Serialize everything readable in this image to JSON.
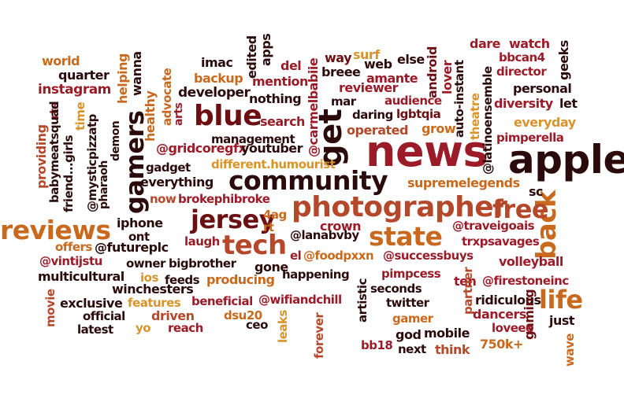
{
  "words": {
    "apple": "apple",
    "news": "news",
    "photographer": "photographer",
    "community": "community",
    "jersey": "jersey",
    "tech": "tech",
    "reviews": "reviews",
    "blue": "blue",
    "gamers": "gamers",
    "get": "get",
    "back": "back",
    "state": "state",
    "free": "free",
    "life": "life",
    "world": "world",
    "quarter": "quarter",
    "instagram": "instagram",
    "helping": "helping",
    "wanna": "wanna",
    "healthy": "healthy",
    "time": "time",
    "rts": "rts",
    "providing": "providing",
    "babymeatsquad": "babymeatsquad",
    "friendgirls": "friend...girls",
    "mysticpizzatp": "@mysticpizzatp",
    "pharaoh": "pharaoh",
    "demon": "demon",
    "advocate": "advocate",
    "arts": "arts",
    "imac": "imac",
    "backup": "backup",
    "developer": "developer",
    "management": "management",
    "edited": "edited",
    "apps": "apps",
    "del": "del",
    "mention": "mention",
    "nothing": "nothing",
    "search": "search",
    "carmelbabiie": "@carmelbabiie",
    "way": "way",
    "surf": "surf",
    "web": "web",
    "else": "else",
    "breee": "breee",
    "amante": "amante",
    "reviewer": "reviewer",
    "mar": "mar",
    "daring": "daring",
    "lgbtqia": "lgbtqia",
    "audience": "audience",
    "android": "android",
    "lover": "lover",
    "autoinstant": "auto-instant",
    "operated": "operated",
    "grow": "grow",
    "dare": "dare",
    "watch": "watch",
    "bbcan4": "bbcan4",
    "director": "director",
    "geeks": "geeks",
    "personal": "personal",
    "diversity": "diversity",
    "let": "let",
    "theatre": "theatre",
    "latinoensemble": "@latinoensemble",
    "everyday": "everyday",
    "pimperella": "pimperella",
    "gridcoregfx": "@gridcoregfx",
    "youtuber": "youtuber",
    "gadget": "gadget",
    "humourist": "different.humourist",
    "everything": "everything",
    "supremelegends": "supremelegends",
    "sc": "sc",
    "now": "now",
    "brokephibroke": "brokephibroke",
    "iphone": "iphone",
    "ont": "ont",
    "fag": "4ag",
    "rt": "rt",
    "crown": "crown",
    "lanabvby": "@lanabvby",
    "traveigoais": "@traveigoais",
    "trxpsavages": "trxpsavages",
    "offers": "offers",
    "futureplc": "@futureplc",
    "laugh": "laugh",
    "vintijstu": "@vintijstu",
    "owner": "owner",
    "bigbrother": "bigbrother",
    "el": "el",
    "foodpxxn": "@foodpxxn",
    "successbuys": "@successbuys",
    "volleyball": "volleyball",
    "multicultural": "multicultural",
    "ios": "ios",
    "feeds": "feeds",
    "producing": "producing",
    "gone": "gone",
    "happening": "happening",
    "pimpcess": "pimpcess",
    "ten": "ten",
    "firestoneinc": "@firestoneinc",
    "winchesters": "winchesters",
    "exclusive": "exclusive",
    "features": "features",
    "beneficial": "beneficial",
    "wifiandchill": "@wifiandchill",
    "seconds": "seconds",
    "artistic": "artistic",
    "partner": "partner",
    "ridiculous": "ridiculous",
    "movie": "movie",
    "official": "official",
    "latest": "latest",
    "driven": "driven",
    "dsu20": "dsu20",
    "twitter": "twitter",
    "gamer": "gamer",
    "dancers": "dancers",
    "gaming": "gaming",
    "just": "just",
    "yo": "yo",
    "reach": "reach",
    "ceo": "ceo",
    "leaks": "leaks",
    "forever": "forever",
    "god": "god",
    "mobile": "mobile",
    "loveee": "loveee",
    "bb18": "bb18",
    "next": "next",
    "think": "think",
    "k750": "750k+",
    "wave": "wave"
  },
  "colors": {
    "dark_red": "#6b0f12",
    "orange": "#c8691e",
    "near_black": "#2a0a0a",
    "gold": "#d8942a",
    "crimson": "#9b1c28",
    "rust": "#b5482a"
  }
}
